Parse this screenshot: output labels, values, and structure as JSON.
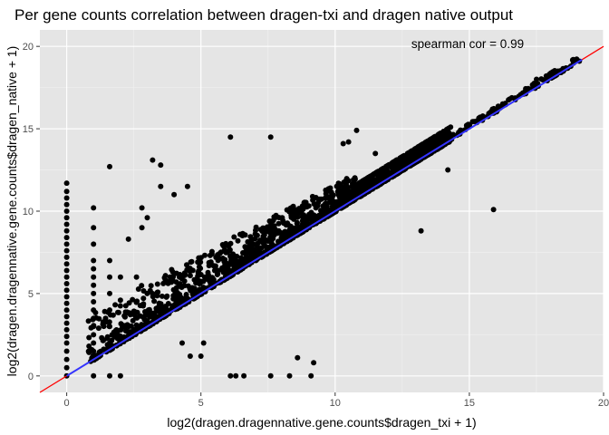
{
  "chart_data": {
    "type": "scatter",
    "title": "Per gene counts correlation between dragen-txi and dragen native output",
    "xlabel": "log2(dragen.dragennative.gene.counts$dragen_txi + 1)",
    "ylabel": "log2(dragen.dragennative.gene.counts$dragen_native + 1)",
    "xlim": [
      -1,
      20
    ],
    "ylim": [
      -1,
      21
    ],
    "xticks": [
      0,
      5,
      10,
      15,
      20
    ],
    "yticks": [
      0,
      5,
      10,
      15,
      20
    ],
    "xtick_labels": [
      "0",
      "5",
      "10",
      "15",
      "20"
    ],
    "ytick_labels": [
      "0",
      "5",
      "10",
      "15",
      "20"
    ],
    "grid": true,
    "panel_background": "#e5e5e5",
    "point_color": "#000000",
    "annotation": "spearman cor =  0.99",
    "lines": [
      {
        "kind": "identity",
        "color": "#ff0000",
        "x": [
          -1,
          20
        ],
        "y": [
          -1,
          20
        ]
      },
      {
        "kind": "regression",
        "color": "#3333ff",
        "x": [
          0,
          19.2
        ],
        "y": [
          0,
          19.2
        ]
      }
    ],
    "points": [
      [
        0,
        0
      ],
      [
        0,
        0.5
      ],
      [
        0,
        1
      ],
      [
        0,
        1.5
      ],
      [
        0,
        2
      ],
      [
        0,
        2.4
      ],
      [
        0,
        2.8
      ],
      [
        0,
        3.2
      ],
      [
        0,
        3.6
      ],
      [
        0,
        4
      ],
      [
        0,
        4.4
      ],
      [
        0,
        4.8
      ],
      [
        0,
        5.2
      ],
      [
        0,
        5.6
      ],
      [
        0,
        6
      ],
      [
        0,
        6.4
      ],
      [
        0,
        6.8
      ],
      [
        0,
        7.2
      ],
      [
        0,
        7.6
      ],
      [
        0,
        8
      ],
      [
        0,
        8.4
      ],
      [
        0,
        8.8
      ],
      [
        0,
        9.2
      ],
      [
        0,
        9.6
      ],
      [
        0,
        10
      ],
      [
        0,
        10.4
      ],
      [
        0,
        10.8
      ],
      [
        0,
        11.2
      ],
      [
        0,
        11.7
      ],
      [
        1,
        0
      ],
      [
        1,
        1
      ],
      [
        1,
        1.5
      ],
      [
        1,
        2
      ],
      [
        1,
        2.5
      ],
      [
        1,
        3
      ],
      [
        1,
        3.5
      ],
      [
        1,
        4
      ],
      [
        1,
        4.5
      ],
      [
        1,
        5
      ],
      [
        1,
        5.5
      ],
      [
        1,
        6
      ],
      [
        1,
        6.5
      ],
      [
        1,
        7
      ],
      [
        1,
        8
      ],
      [
        1,
        9
      ],
      [
        1,
        10.2
      ],
      [
        1.6,
        0
      ],
      [
        1.6,
        1.6
      ],
      [
        1.6,
        2
      ],
      [
        1.6,
        3
      ],
      [
        1.6,
        4
      ],
      [
        1.6,
        5
      ],
      [
        1.6,
        6
      ],
      [
        1.6,
        7
      ],
      [
        1.6,
        12.7
      ],
      [
        2,
        0
      ],
      [
        2,
        2
      ],
      [
        2,
        4.6
      ],
      [
        2,
        6
      ],
      [
        2.3,
        8.3
      ],
      [
        2.6,
        6
      ],
      [
        2.8,
        9
      ],
      [
        2.8,
        10.2
      ],
      [
        3,
        9.6
      ],
      [
        3.2,
        13.1
      ],
      [
        3.5,
        12.8
      ],
      [
        3.5,
        11.5
      ],
      [
        4,
        11
      ],
      [
        4.5,
        11.5
      ],
      [
        4.3,
        2
      ],
      [
        4.6,
        1.2
      ],
      [
        5,
        1.2
      ],
      [
        5.1,
        2
      ],
      [
        6.1,
        14.5
      ],
      [
        6.1,
        0
      ],
      [
        6.3,
        0
      ],
      [
        6.6,
        0
      ],
      [
        7.6,
        14.5
      ],
      [
        7.6,
        0
      ],
      [
        8.3,
        0
      ],
      [
        8.6,
        1.1
      ],
      [
        9.1,
        0
      ],
      [
        9.2,
        0.8
      ],
      [
        10.3,
        14.1
      ],
      [
        10.5,
        14.2
      ],
      [
        10.8,
        14.9
      ],
      [
        11.5,
        13.5
      ],
      [
        13.2,
        8.8
      ],
      [
        15.9,
        10.1
      ],
      [
        14.9,
        15.2
      ],
      [
        13.5,
        13.5
      ],
      [
        12,
        12
      ],
      [
        18.3,
        18.5
      ],
      [
        18.5,
        18.5
      ],
      [
        19.1,
        19.1
      ],
      [
        17.5,
        18
      ],
      [
        16.5,
        16.8
      ],
      [
        14.2,
        12.5
      ],
      [
        14.3,
        14.5
      ]
    ]
  }
}
